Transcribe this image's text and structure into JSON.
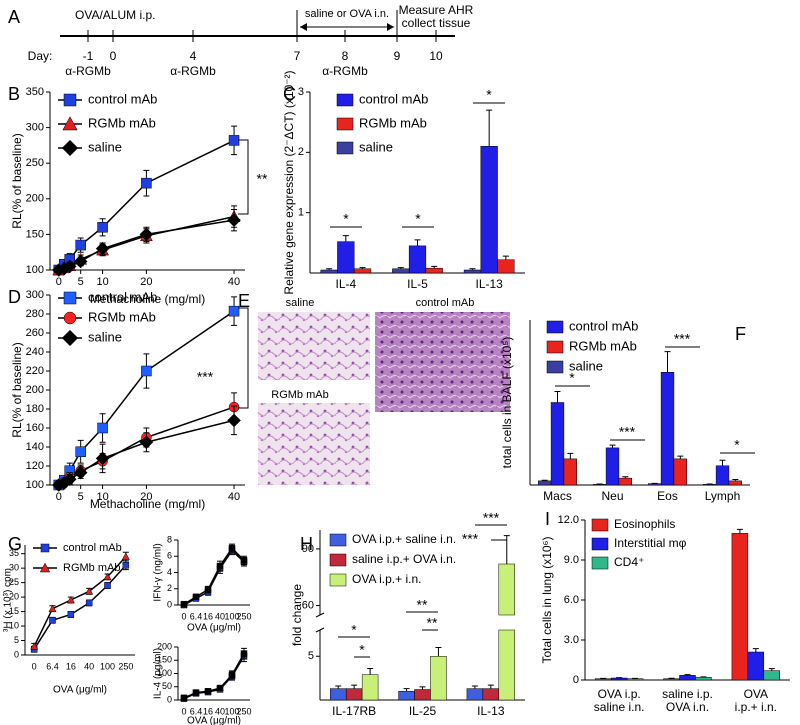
{
  "panel_labels": [
    "A",
    "B",
    "C",
    "D",
    "E",
    "F",
    "G",
    "H",
    "I"
  ],
  "timeline": {
    "top_label": "OVA/ALUM i.p.",
    "day_label": "Day:",
    "days": [
      "-1",
      "0",
      "4",
      "7",
      "8",
      "9",
      "10"
    ],
    "treatments": [
      "α-RGMb",
      "α-RGMb",
      "α-RGMb"
    ],
    "challenge": "saline or OVA i.n.",
    "endpoint": "Measure AHR\ncollect tissue"
  },
  "histology": {
    "images": [
      {
        "label": "saline"
      },
      {
        "label": "control mAb"
      },
      {
        "label": "RGMb mAb"
      }
    ]
  },
  "chart_data": [
    {
      "type": "line",
      "xlabel": "Methacholine (mg/ml)",
      "ylabel": "RL(% of baseline)",
      "x": [
        0,
        1.25,
        2.5,
        5,
        10,
        20,
        40
      ],
      "xlim": [
        -2,
        42.5
      ],
      "xticks": [
        0,
        5,
        10,
        20,
        40
      ],
      "ylim": [
        100,
        350
      ],
      "yticks": [
        100,
        150,
        200,
        250,
        300,
        350
      ],
      "series": [
        {
          "name": "control mAb",
          "color": "#1f3fe0",
          "marker": "square",
          "values": [
            100,
            108,
            115,
            135,
            160,
            222,
            282
          ],
          "errors": [
            4,
            5,
            8,
            10,
            12,
            18,
            20
          ]
        },
        {
          "name": "RGMb mAb",
          "color": "#e01f1f",
          "marker": "triangle",
          "values": [
            100,
            103,
            106,
            115,
            128,
            148,
            175
          ],
          "errors": [
            3,
            4,
            5,
            6,
            8,
            10,
            15
          ]
        },
        {
          "name": "saline",
          "color": "#000000",
          "marker": "diamond",
          "values": [
            100,
            102,
            105,
            112,
            130,
            150,
            170
          ],
          "errors": [
            3,
            4,
            5,
            6,
            8,
            10,
            15
          ]
        }
      ],
      "annotations": [
        "**"
      ]
    },
    {
      "type": "bar",
      "ylabel": "Relative gene expression (2⁻ΔCT) (x10⁻²)",
      "categories": [
        "IL-4",
        "IL-5",
        "IL-13"
      ],
      "ylim": [
        0,
        3
      ],
      "yticks": [
        1,
        2,
        3
      ],
      "series": [
        {
          "name": "control mAb",
          "color": "#1f1fe8",
          "values": [
            0.52,
            0.45,
            2.1
          ],
          "errors": [
            0.1,
            0.1,
            0.6
          ]
        },
        {
          "name": "RGMb mAb",
          "color": "#e8241f",
          "values": [
            0.07,
            0.08,
            0.22
          ],
          "errors": [
            0.02,
            0.03,
            0.06
          ]
        },
        {
          "name": "saline",
          "color": "#3a3fa0",
          "values": [
            0.05,
            0.07,
            0.05
          ],
          "errors": [
            0.02,
            0.02,
            0.02
          ]
        }
      ],
      "annotations": [
        "*",
        "*",
        "*"
      ]
    },
    {
      "type": "line",
      "xlabel": "Methacholine (mg/ml)",
      "ylabel": "RL(% of baseline)",
      "x": [
        0,
        1.25,
        2.5,
        5,
        10,
        20,
        40
      ],
      "xlim": [
        -2,
        42.5
      ],
      "xticks": [
        0,
        5,
        10,
        20,
        40
      ],
      "ylim": [
        100,
        300
      ],
      "yticks": [
        100,
        120,
        140,
        160,
        180,
        200,
        220,
        240,
        260,
        280,
        300
      ],
      "series": [
        {
          "name": "control mAb",
          "color": "#1f5fff",
          "marker": "square",
          "values": [
            100,
            105,
            115,
            135,
            160,
            220,
            283
          ],
          "errors": [
            3,
            5,
            8,
            12,
            15,
            18,
            15
          ]
        },
        {
          "name": "RGMb mAb",
          "color": "#ff1f1f",
          "marker": "circle",
          "values": [
            100,
            103,
            108,
            115,
            125,
            150,
            182
          ],
          "errors": [
            3,
            4,
            5,
            6,
            8,
            10,
            15
          ]
        },
        {
          "name": "saline",
          "color": "#000000",
          "marker": "diamond",
          "values": [
            100,
            102,
            106,
            113,
            128,
            145,
            168
          ],
          "errors": [
            3,
            4,
            5,
            6,
            15,
            10,
            15
          ]
        }
      ],
      "annotations": [
        "***"
      ]
    },
    {
      "type": "bar",
      "ylabel": "total cells in BALF (x10⁵)",
      "categories": [
        "Macs",
        "Neu",
        "Eos",
        "Lymph"
      ],
      "ylim": [
        0,
        12
      ],
      "series": [
        {
          "name": "control mAb",
          "color": "#1f1fe8",
          "values": [
            6.0,
            2.7,
            8.2,
            1.4
          ],
          "errors": [
            0.8,
            0.2,
            1.5,
            0.4
          ]
        },
        {
          "name": "RGMb mAb",
          "color": "#e8241f",
          "values": [
            1.9,
            0.5,
            1.9,
            0.3
          ],
          "errors": [
            0.4,
            0.1,
            0.2,
            0.1
          ]
        },
        {
          "name": "saline",
          "color": "#3a3fa0",
          "values": [
            0.3,
            0.05,
            0.1,
            0.05
          ],
          "errors": [
            0.05,
            0.02,
            0.02,
            0.02
          ]
        }
      ],
      "annotations": [
        "*",
        "***",
        "***",
        "*"
      ]
    },
    {
      "type": "line",
      "xlabel": "OVA (μg/ml)",
      "ylabel": "³H (x 10³) cpm",
      "categories": [
        "0",
        "6.4",
        "16",
        "40",
        "100",
        "250"
      ],
      "ylim": [
        0,
        38
      ],
      "yticks": [
        0,
        5,
        10,
        15,
        20,
        25,
        30,
        35
      ],
      "series": [
        {
          "name": "control mAb",
          "color": "#1f3fe0",
          "marker": "square",
          "values": [
            2,
            12,
            14,
            18,
            24,
            31
          ],
          "errors": [
            1,
            1,
            1,
            1,
            1,
            1.5
          ]
        },
        {
          "name": "RGMb mAb",
          "color": "#e01f1f",
          "marker": "triangle",
          "values": [
            3,
            16,
            19,
            22,
            27,
            34
          ],
          "errors": [
            1,
            1,
            1,
            1,
            1,
            1.5
          ]
        }
      ]
    },
    {
      "type": "line",
      "xlabel": "OVA (μg/ml)",
      "ylabel": "IFN-γ (ng/ml)",
      "categories": [
        "0",
        "6.4",
        "16",
        "40",
        "100",
        "250"
      ],
      "ylim": [
        0,
        8
      ],
      "yticks": [
        0,
        2,
        4,
        6,
        8
      ],
      "series": [
        {
          "color": "#1f3fe0",
          "marker": "square",
          "values": [
            0,
            0.8,
            1.6,
            4.5,
            6.7,
            5.3
          ],
          "errors": [
            0.2,
            0.3,
            0.4,
            0.6,
            0.5,
            0.5
          ]
        },
        {
          "color": "#000000",
          "marker": "square",
          "values": [
            0.1,
            1,
            1.9,
            4.8,
            7,
            5.5
          ],
          "errors": [
            0.2,
            0.3,
            0.4,
            0.6,
            0.5,
            0.5
          ]
        }
      ]
    },
    {
      "type": "line",
      "xlabel": "OVA (μg/ml)",
      "ylabel": "IL-4 (pg/ml)",
      "categories": [
        "0",
        "6.4",
        "16",
        "40",
        "100",
        "250"
      ],
      "ylim": [
        0,
        200
      ],
      "yticks": [
        0,
        50,
        100,
        150,
        200
      ],
      "series": [
        {
          "color": "#1f3fe0",
          "marker": "square",
          "values": [
            5,
            25,
            30,
            40,
            90,
            165
          ],
          "errors": [
            5,
            5,
            8,
            8,
            15,
            20
          ]
        },
        {
          "color": "#000000",
          "marker": "square",
          "values": [
            8,
            28,
            33,
            45,
            95,
            175
          ],
          "errors": [
            5,
            5,
            8,
            8,
            15,
            20
          ]
        }
      ]
    },
    {
      "type": "bar",
      "ylabel": "fold change",
      "categories": [
        "IL-17RB",
        "IL-25",
        "IL-13"
      ],
      "ylim": [
        0,
        100
      ],
      "ybreak": [
        8,
        55
      ],
      "yticks": [
        5,
        60,
        90
      ],
      "series": [
        {
          "name": "OVA i.p.+ saline i.n.",
          "color": "#3f5fe0",
          "values": [
            1.3,
            1.0,
            1.3
          ],
          "errors": [
            0.3,
            0.3,
            0.3
          ]
        },
        {
          "name": "saline i.p.+ OVA i.n.",
          "color": "#c0283c",
          "values": [
            1.3,
            1.2,
            1.3
          ],
          "errors": [
            0.4,
            0.3,
            0.4
          ]
        },
        {
          "name": "OVA i.p.+ i.n.",
          "color": "#c8f078",
          "values": [
            2.9,
            5.0,
            82
          ],
          "errors": [
            0.7,
            1.0,
            15
          ]
        }
      ],
      "annotations": [
        "*",
        "*",
        "**",
        "**",
        "***",
        "***"
      ]
    },
    {
      "type": "bar",
      "ylabel": "Total cells in lung (x10⁶)",
      "categories": [
        "OVA i.p.\nsaline i.n.",
        "saline i.p.\nOVA i.n.",
        "OVA i.p.+ i.n."
      ],
      "ylim": [
        0,
        12
      ],
      "yticks": [
        0,
        {
          "value": 3,
          "label": "3.0"
        },
        {
          "value": 6,
          "label": "6.0"
        },
        {
          "value": 9,
          "label": "9.0"
        },
        {
          "value": 12,
          "label": "12.0"
        }
      ],
      "series": [
        {
          "name": "Eosinophils",
          "color": "#e8241f",
          "values": [
            0.1,
            0.1,
            11.0
          ],
          "errors": [
            0.02,
            0.03,
            0.3
          ]
        },
        {
          "name": "Interstitial mφ",
          "color": "#1f1fe8",
          "values": [
            0.15,
            0.35,
            2.1
          ],
          "errors": [
            0.03,
            0.05,
            0.25
          ]
        },
        {
          "name": "CD4⁺",
          "color": "#2fb88a",
          "values": [
            0.1,
            0.2,
            0.7
          ],
          "errors": [
            0.02,
            0.03,
            0.15
          ]
        }
      ]
    }
  ]
}
